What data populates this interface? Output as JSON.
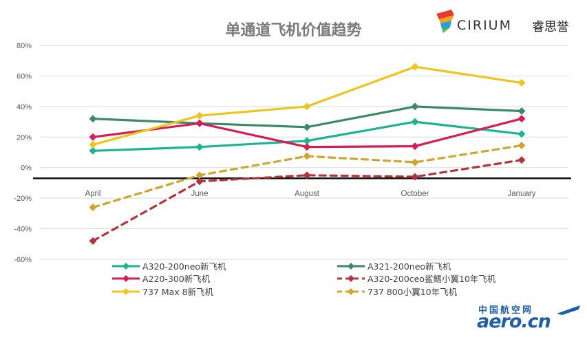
{
  "title": "单通道飞机价值趋势",
  "logo": {
    "word": "CIRIUM",
    "cn": "睿思誉"
  },
  "watermark": {
    "cn": "中国航空网",
    "en": "aero.cn"
  },
  "chart_data": {
    "type": "line",
    "title": "单通道飞机价值趋势",
    "categories": [
      "April",
      "June",
      "August",
      "October",
      "January"
    ],
    "yticks": [
      "80%",
      "60%",
      "40%",
      "20%",
      "0%",
      "-20%",
      "-40%",
      "-60%"
    ],
    "ylim": [
      -60,
      80
    ],
    "baseline": -7,
    "grid": true,
    "legend_position": "bottom",
    "series": [
      {
        "name": "A320-200neo新飞机",
        "values": [
          11,
          13.5,
          17.5,
          30,
          22
        ],
        "color": "#1ab394",
        "dash": false
      },
      {
        "name": "A321-200neo新飞机",
        "values": [
          32,
          29,
          26.5,
          40,
          37
        ],
        "color": "#3a8a64",
        "dash": false
      },
      {
        "name": "A220-300新飞机",
        "values": [
          20,
          29,
          13.5,
          14,
          32
        ],
        "color": "#d81b52",
        "dash": false
      },
      {
        "name": "A320-200ceo鲨鳍小翼10年飞机",
        "values": [
          -48,
          -9,
          -5,
          -6,
          5
        ],
        "color": "#b5323a",
        "dash": true
      },
      {
        "name": "737 Max 8新飞机",
        "values": [
          15,
          34,
          40,
          66,
          55.5
        ],
        "color": "#efc41b",
        "dash": false
      },
      {
        "name": "737 800小翼10年飞机",
        "values": [
          -26,
          -5,
          7.5,
          3.5,
          14.5
        ],
        "color": "#d1a42a",
        "dash": true
      }
    ]
  }
}
